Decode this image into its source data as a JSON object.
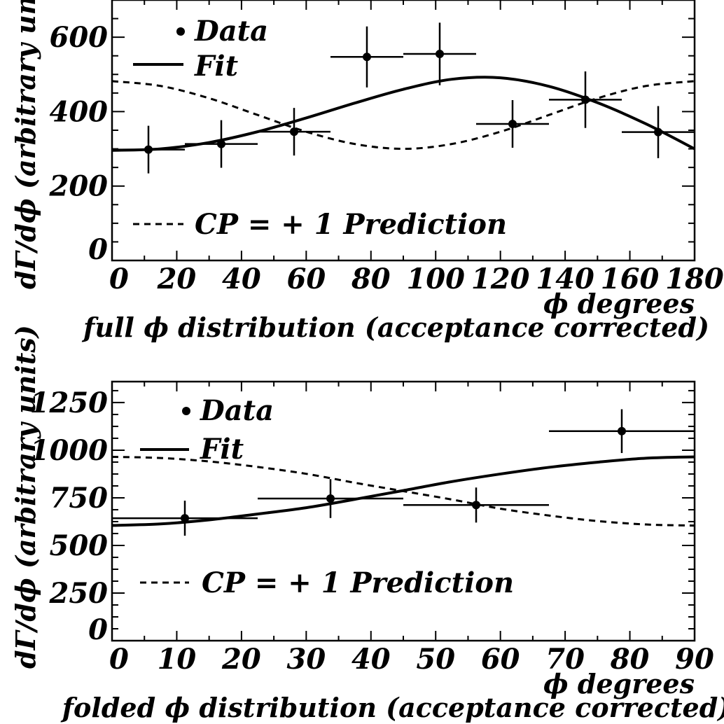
{
  "chart_data": [
    {
      "type": "scatter",
      "title": "",
      "caption": "full ϕ distribution (acceptance corrected)",
      "xlabel": "ϕ degrees",
      "ylabel": "dΓ/dϕ (arbitrary units)",
      "xlim": [
        0,
        180
      ],
      "ylim": [
        0,
        700
      ],
      "xticks": [
        0,
        20,
        40,
        60,
        80,
        100,
        120,
        140,
        160,
        180
      ],
      "yticks": [
        0,
        200,
        400,
        600
      ],
      "legend": {
        "data": "Data",
        "fit": "Fit",
        "prediction": "CP = + 1 Prediction"
      },
      "data": {
        "x": [
          11.25,
          33.75,
          56.25,
          78.75,
          101.25,
          123.75,
          146.25,
          168.75
        ],
        "y": [
          298,
          313,
          346,
          547,
          555,
          367,
          432,
          345
        ],
        "xerr": 11.25,
        "yerr": [
          64,
          64,
          64,
          82,
          84,
          64,
          76,
          70
        ]
      },
      "fit": {
        "x": [
          0,
          15,
          30,
          45,
          60,
          75,
          90,
          105,
          120,
          135,
          150,
          165,
          180
        ],
        "y": [
          296,
          300,
          317,
          346,
          383,
          423,
          460,
          487,
          491,
          468,
          424,
          367,
          300
        ]
      },
      "prediction": {
        "x": [
          0,
          15,
          30,
          45,
          60,
          75,
          90,
          105,
          120,
          135,
          150,
          165,
          180
        ],
        "y": [
          482,
          469,
          436,
          391,
          346,
          313,
          300,
          313,
          346,
          391,
          436,
          469,
          482
        ]
      }
    },
    {
      "type": "scatter",
      "title": "",
      "caption": "folded ϕ distribution (acceptance corrected)",
      "xlabel": "ϕ degrees",
      "ylabel": "dΓ/dϕ (arbitrary units)",
      "xlim": [
        0,
        90
      ],
      "ylim": [
        0,
        1360
      ],
      "xticks": [
        0,
        10,
        20,
        30,
        40,
        50,
        60,
        70,
        80,
        90
      ],
      "yticks": [
        0,
        250,
        500,
        750,
        1000,
        1250
      ],
      "legend": {
        "data": "Data",
        "fit": "Fit",
        "prediction": "CP = + 1 Prediction"
      },
      "data": {
        "x": [
          11.25,
          33.75,
          56.25,
          78.75
        ],
        "y": [
          643,
          746,
          712,
          1100
        ],
        "xerr": 11.25,
        "yerr": [
          92,
          102,
          92,
          115
        ]
      },
      "fit": {
        "x": [
          0,
          7.5,
          15,
          22.5,
          30,
          37.5,
          45,
          52.5,
          60,
          67.5,
          75,
          82.5,
          90
        ],
        "y": [
          605,
          613,
          634,
          665,
          698,
          742,
          788,
          835,
          875,
          910,
          937,
          958,
          965
        ]
      },
      "prediction": {
        "x": [
          0,
          7.5,
          15,
          22.5,
          30,
          37.5,
          45,
          52.5,
          60,
          67.5,
          75,
          82.5,
          90
        ],
        "y": [
          965,
          959,
          941,
          912,
          876,
          829,
          785,
          741,
          693,
          657,
          628,
          610,
          604
        ]
      }
    }
  ]
}
